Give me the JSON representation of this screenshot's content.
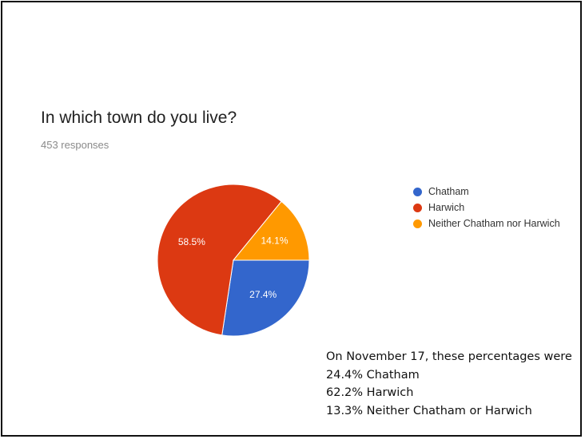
{
  "form": {
    "question": "In which town do you live?",
    "responses": "453 responses"
  },
  "chart_data": {
    "type": "pie",
    "categories": [
      "Chatham",
      "Harwich",
      "Neither Chatham nor Harwich"
    ],
    "values": [
      27.4,
      58.5,
      14.1
    ],
    "data_labels": [
      "27.4%",
      "58.5%",
      "14.1%"
    ],
    "colors": [
      "#3366cc",
      "#dc3912",
      "#ff9900"
    ],
    "legend_position": "right"
  },
  "note": {
    "lines": [
      "On November 17, these percentages were",
      "24.4% Chatham",
      "62.2% Harwich",
      "13.3% Neither Chatham or Harwich"
    ]
  }
}
